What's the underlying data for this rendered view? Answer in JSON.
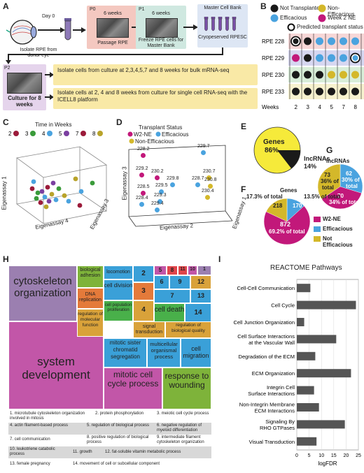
{
  "panelA": {
    "letter": "A",
    "day0": "Day 0",
    "isolate_label": "Isolate RPE from donor eye",
    "p0_label": "P0",
    "p0_weeks": "6 weeks",
    "p0_caption": "Passage RPE",
    "p1_label": "P1",
    "p1_weeks": "6 weeks",
    "p1_caption": "Freeze RPE cells for Master Bank",
    "mcb_title": "Master Cell Bank",
    "mcb_caption": "Cryopeserved RPESC",
    "p2_label": "P2",
    "p2_caption": "Culture for 8 weeks",
    "step1": "Isolate cells from culture at 2,3,4,5,7 and 8 weeks for bulk mRNA-seq",
    "step2": "Isolate cells at 2, 4 and 8 weeks from culture for single cell RNA-seq with the ICELL8 platform"
  },
  "panelB": {
    "letter": "B",
    "legend": {
      "not_transplanted": "Not Transplanted",
      "non_efficacious": "Non-Efficacious",
      "efficacious": "Efficacious",
      "week2_ne": "Week 2 NE",
      "predicted": "Predicted transplant status"
    },
    "rows": [
      "RPE 228",
      "RPE 229",
      "RPE 230",
      "RPE 233"
    ],
    "weeks_label": "Weeks",
    "weeks": [
      "2",
      "3",
      "4",
      "5",
      "7",
      "8"
    ],
    "colors": {
      "black": "#1a1a1a",
      "blue": "#4aa3df",
      "magenta": "#c2187a",
      "yellow": "#d4b82a",
      "row228": "#f7d7d7",
      "row229": "#d7d7f1",
      "row230": "#d9eed9",
      "row233": "#f7f2cf"
    }
  },
  "panelC": {
    "letter": "C",
    "title": "Time in Weeks",
    "legend": [
      "2",
      "3",
      "4",
      "5",
      "7",
      "8"
    ],
    "legend_colors": [
      "#9b1b3a",
      "#3a9b3a",
      "#4aa3df",
      "#7b3fa0",
      "#9b1b3a",
      "#b8a32a"
    ],
    "axis1": "Eigenassay 1",
    "axis3": "Eigenassay 3",
    "axis4": "Eigenassay 4"
  },
  "panelD": {
    "letter": "D",
    "title": "Transplant Status",
    "legend": {
      "w2ne": "W2-NE",
      "eff": "Efficacious",
      "noneff": "Non-Efficacious"
    },
    "axis2": "Eigenassay 2",
    "axis3": "Eigenassay 3",
    "axis1": "Eigenassay 1",
    "points": [
      "228.2",
      "229.7",
      "229.2",
      "230.2",
      "230.7",
      "228.7",
      "229.8",
      "230.8",
      "229.5",
      "228.5",
      "230.4",
      "229.3",
      "228.4",
      "229.4"
    ]
  },
  "panelE": {
    "letter": "E",
    "genes_label": "Genes",
    "genes_pct": "86%",
    "lnc_label": "lncRNAs",
    "lnc_pct": "14%"
  },
  "panelF": {
    "letter": "F",
    "title": "Genes",
    "left_pct": "17.3% of total",
    "right_pct": "13.5% of total",
    "yellow_val": "218",
    "blue_val": "170",
    "magenta_val": "872",
    "magenta_pct": "69.2% of total",
    "legend": {
      "w2ne": "W2-NE",
      "eff": "Efficacious",
      "noneff_1": "Not",
      "noneff_2": "Efficacious"
    }
  },
  "panelG": {
    "letter": "G",
    "title": "lncRNAs",
    "yellow_val": "73",
    "yellow_pct_1": "36% of",
    "yellow_pct_2": "total",
    "blue_val": "62",
    "blue_pct_1": "30% of",
    "blue_pct_2": "total",
    "magenta_val": "70",
    "magenta_pct": "34% of total"
  },
  "panelH": {
    "letter": "H",
    "cells": {
      "cytoskeleton": "cytoskeleton organization",
      "system_dev": "system development",
      "bio_adhesion": "biological adhesion",
      "dna_rep": "DNA replication",
      "reg_mol": "regulation of molecular function",
      "locomotion": "locomotion",
      "cell_div": "cell division",
      "cell_pop": "cell population proliferation",
      "mitotic_sister": "mitotic sister chromatid segregation",
      "multicellular": "multicellular organismal process",
      "cell_death": "cell death",
      "signal": "signal transduction",
      "reg_bio": "regulation of biological quality",
      "cell_mig": "cell migration",
      "mitotic_cc": "mitotic cell cycle process",
      "response": "response to wounding"
    },
    "numbers": [
      "1",
      "2",
      "3",
      "4",
      "5",
      "6",
      "7",
      "8",
      "9",
      "10",
      "11",
      "12",
      "13",
      "14"
    ],
    "legend": [
      "1. microtubule cytoskeleton organization involved in mitosis",
      "2. protein phosphorylation",
      "3. meiotic cell cycle process",
      "4. actin filament-based process",
      "5. regulation of biological process",
      "6. negative regulation of myeloid differentiation",
      "7. cell communication",
      "8. positive regulation of biological process",
      "9. intermediate filament cytoskeleton organization",
      "10. leukotriene catabolic process",
      "11. growth",
      "12. fat-soluble vitamin metabolic process",
      "13. female pregnancy",
      "14. movement of cell or subcellular component"
    ]
  },
  "panelI": {
    "letter": "I",
    "title": "REACTOME Pathways",
    "xlabel": "logFDR"
  },
  "chart_data": {
    "type": "bar",
    "title": "REACTOME Pathways",
    "xlabel": "logFDR",
    "xlim": [
      0,
      25
    ],
    "ticks": [
      "0",
      "5",
      "10",
      "15",
      "20",
      "25"
    ],
    "categories": [
      "Cell-Cell Communication",
      "Cell Cycle",
      "Cell Junction Organization",
      "Cell Surface Interactions at the Vascular Wall",
      "Degradation of the ECM",
      "ECM Organization",
      "Integrin Cell Surface Interactions",
      "Non-Integrin Membrane ECM Interactions",
      "Signaling By RHO GTPases",
      "Visual Transduction"
    ],
    "label_lines": [
      [
        "Cell-Cell Communication"
      ],
      [
        "Cell Cycle"
      ],
      [
        "Cell Junction Organization"
      ],
      [
        "Cell Surface Interactions",
        "at the Vascular Wall"
      ],
      [
        "Degradation of the ECM"
      ],
      [
        "ECM Organization"
      ],
      [
        "Integrin Cell",
        "Surface Interactions"
      ],
      [
        "Non-Integrin Membrane",
        "ECM Interactions"
      ],
      [
        "Signaling By",
        "RHO GTPases"
      ],
      [
        "Visual Transduction"
      ]
    ],
    "values": [
      5.5,
      24,
      3,
      16,
      7.5,
      22,
      7,
      9,
      19.5,
      8
    ],
    "bar_color": "#555555"
  }
}
